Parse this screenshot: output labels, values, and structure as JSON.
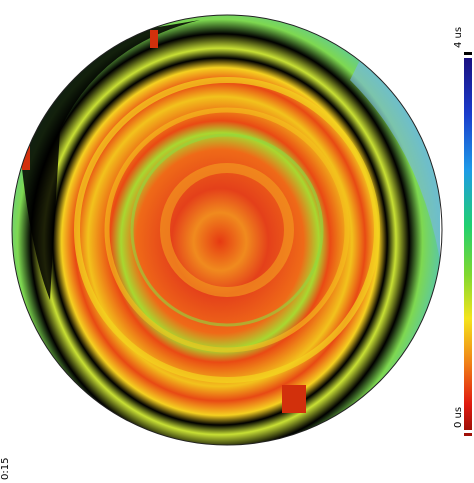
{
  "colorbar": {
    "top_label": "4 us",
    "bottom_label": "0 us"
  },
  "timestamp": "0:15"
}
